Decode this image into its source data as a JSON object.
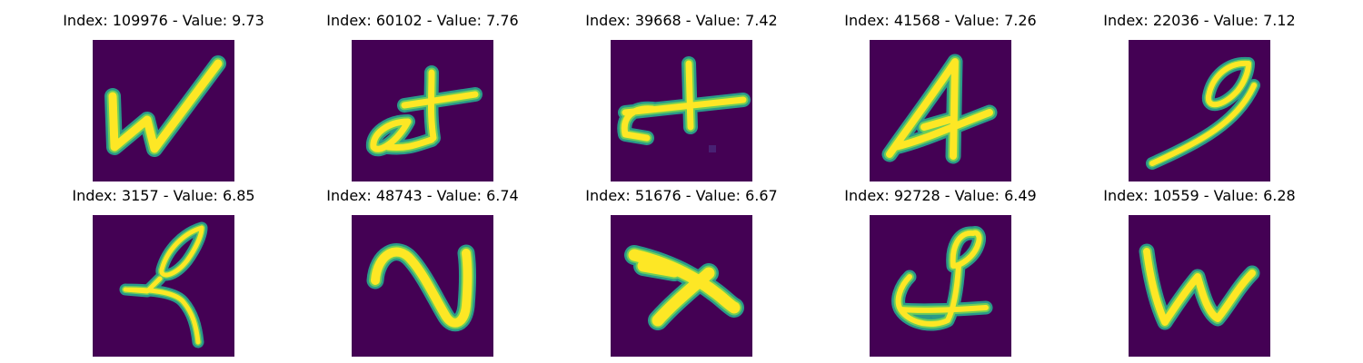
{
  "colors": {
    "background": "#440154",
    "stroke_outer": "#2a9a89",
    "stroke_mid": "#6ccd5a",
    "stroke_inner": "#fde725"
  },
  "panels": [
    {
      "title": "Index: 109976 - Value: 9.73",
      "glyph": "w"
    },
    {
      "title": "Index: 60102 - Value: 7.76",
      "glyph": "alpha-t"
    },
    {
      "title": "Index: 39668 - Value: 7.42",
      "glyph": "c-t"
    },
    {
      "title": "Index: 41568 - Value: 7.26",
      "glyph": "four"
    },
    {
      "title": "Index: 22036 - Value: 7.12",
      "glyph": "loop-stroke"
    },
    {
      "title": "Index: 3157 - Value: 6.85",
      "glyph": "loop-k"
    },
    {
      "title": "Index: 48743 - Value: 6.74",
      "glyph": "n-curve"
    },
    {
      "title": "Index: 51676 - Value: 6.67",
      "glyph": "x-shape"
    },
    {
      "title": "Index: 92728 - Value: 6.49",
      "glyph": "q-loop"
    },
    {
      "title": "Index: 10559 - Value: 6.28",
      "glyph": "w-small"
    }
  ]
}
